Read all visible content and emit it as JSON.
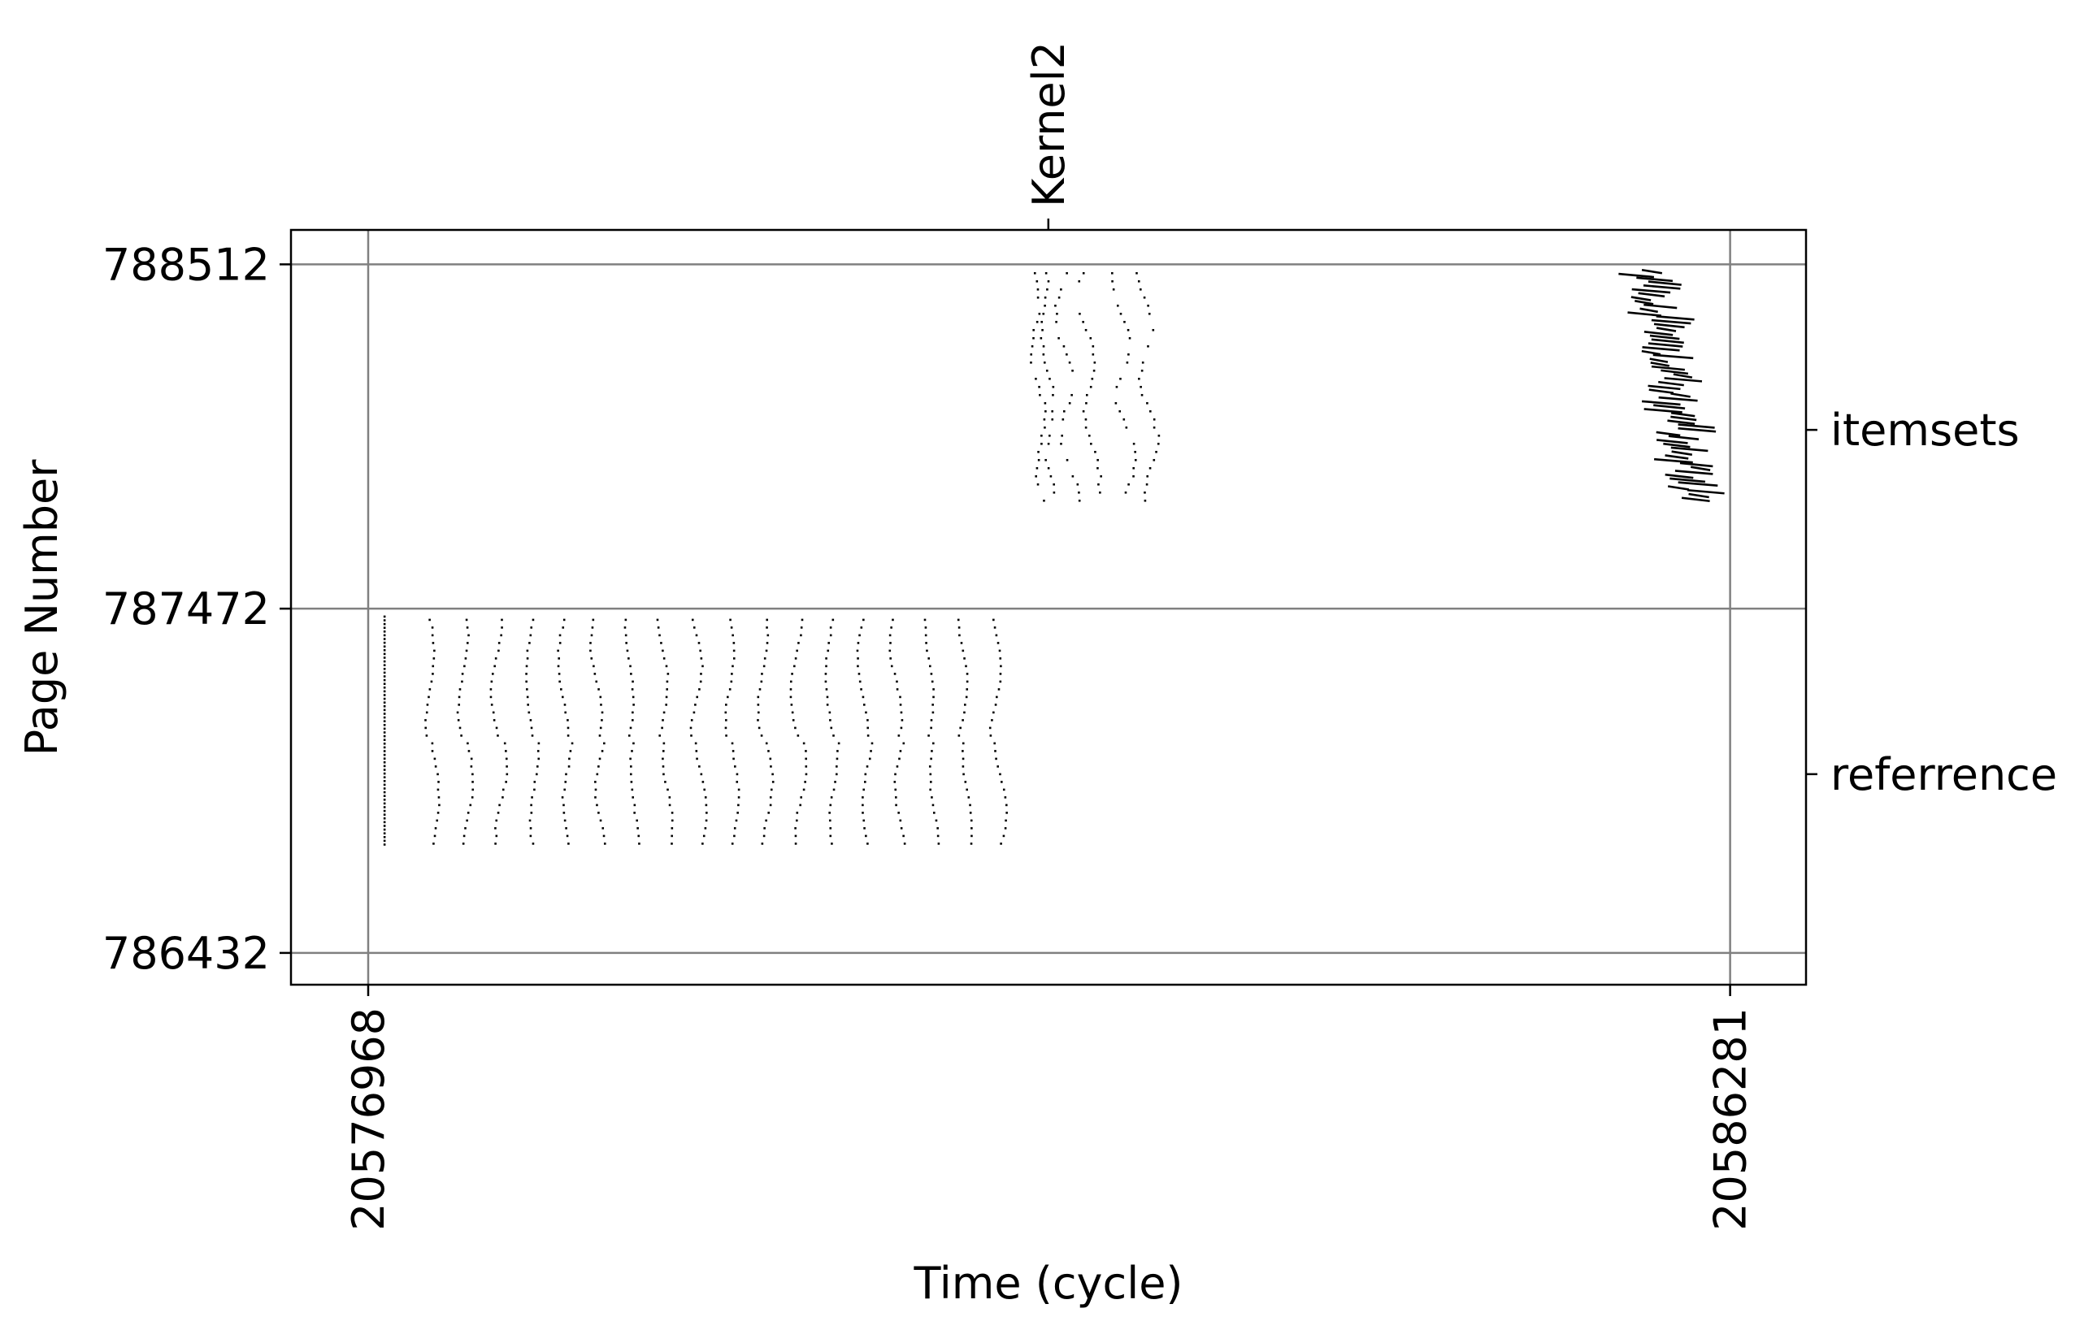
{
  "chart_data": {
    "type": "scatter",
    "xlabel": "Time (cycle)",
    "ylabel": "Page Number",
    "xlim": [
      20576440,
      20586800
    ],
    "ylim": [
      786336,
      788616
    ],
    "x_ticks": [
      20576968,
      20586281
    ],
    "x_tick_labels": [
      "20576968",
      "20586281"
    ],
    "y_ticks": [
      786432,
      787472,
      788512
    ],
    "y_tick_labels": [
      "786432",
      "787472",
      "788512"
    ],
    "grid": true,
    "top_ticks": [
      {
        "x": 20581619,
        "label": "Kernel2"
      }
    ],
    "right_ticks": [
      {
        "y": 788012,
        "label": "itemsets"
      },
      {
        "y": 786972,
        "label": "referrence"
      }
    ],
    "series": [
      {
        "label": "referrence",
        "marker": "point",
        "x_range": [
          20577080,
          20581400
        ],
        "y_range": [
          786752,
          787448
        ],
        "pattern": "19 vertical streaks of points: first at x=20577080 spanning 786752-787448, then 18 wavy streaks spaced ~250 cycles apart from x=20577390 to x=20581260"
      },
      {
        "label": "itemsets",
        "marker": "point",
        "x_range": [
          20581460,
          20582440
        ],
        "y_range": [
          787792,
          788500
        ],
        "pattern": "scattered wavy point streaks between x=20581460 and x=20582440"
      },
      {
        "label": "itemsets",
        "marker": "short-segment",
        "x_range": [
          20585560,
          20586080
        ],
        "y_range": [
          787792,
          788500
        ],
        "pattern": "diagonal band of short horizontal segments drifting right as page number decreases"
      }
    ]
  }
}
